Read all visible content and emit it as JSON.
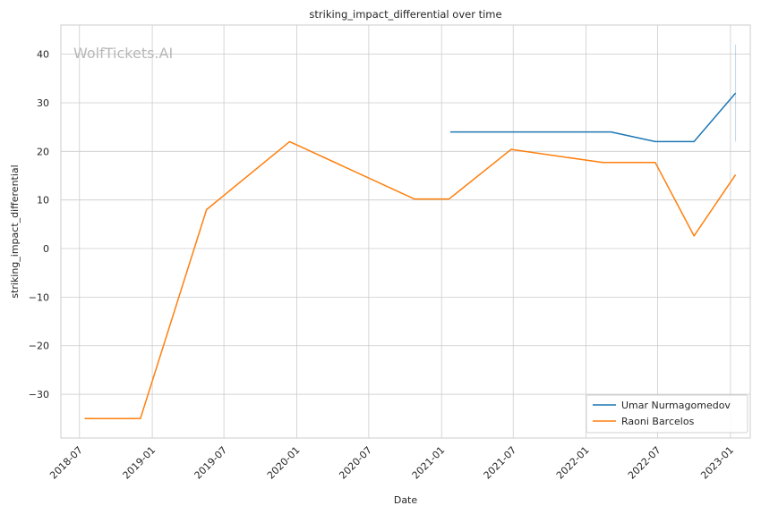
{
  "chart_data": {
    "type": "line",
    "title": "striking_impact_differential over time",
    "xlabel": "Date",
    "ylabel": "striking_impact_differential",
    "watermark": "WolfTickets.AI",
    "grid": true,
    "legend_position": "bottom-right",
    "x_range": [
      "2018-05-15",
      "2023-02-20"
    ],
    "ylim": [
      -39,
      46
    ],
    "x_ticks": [
      "2018-07",
      "2019-01",
      "2019-07",
      "2020-01",
      "2020-07",
      "2021-01",
      "2021-07",
      "2022-01",
      "2022-07",
      "2023-01"
    ],
    "y_ticks": [
      40,
      30,
      20,
      10,
      0,
      -10,
      -20,
      -30
    ],
    "y_tick_labels": [
      "40",
      "30",
      "20",
      "10",
      "0",
      "−10",
      "−20",
      "−30"
    ],
    "series": [
      {
        "name": "Umar Nurmagomedov",
        "color": "#1f77b4",
        "x": [
          "2021-01-23",
          "2022-03-05",
          "2022-06-25",
          "2022-10-01",
          "2023-01-14"
        ],
        "y": [
          24,
          24,
          22,
          22,
          32
        ]
      },
      {
        "name": "Raoni Barcelos",
        "color": "#ff7f0e",
        "x": [
          "2018-07-14",
          "2018-12-02",
          "2019-05-18",
          "2019-12-14",
          "2020-10-24",
          "2021-01-20",
          "2021-06-26",
          "2022-02-12",
          "2022-06-25",
          "2022-10-01",
          "2023-01-14"
        ],
        "y": [
          -35,
          -35,
          8,
          22,
          10.2,
          10.2,
          20.4,
          17.7,
          17.7,
          2.6,
          15.2
        ]
      }
    ],
    "error_bar": {
      "x": "2023-01-14",
      "y_low": 22,
      "y_high": 42,
      "color": "#1f77b4"
    }
  }
}
